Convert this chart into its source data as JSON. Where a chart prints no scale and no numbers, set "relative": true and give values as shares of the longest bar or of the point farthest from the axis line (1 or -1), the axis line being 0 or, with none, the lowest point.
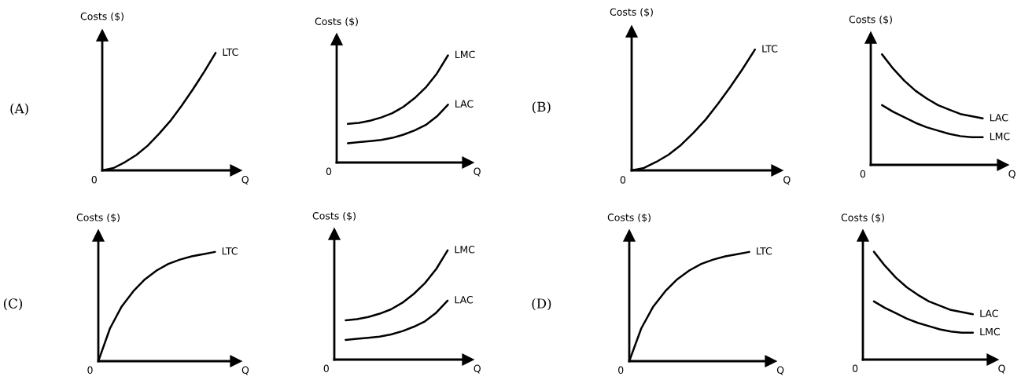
{
  "chart_data": [
    {
      "type": "line",
      "relative": true,
      "ylabel": "Costs ($)",
      "xlabel": "Q",
      "annotations": [
        "(A)",
        "0"
      ],
      "categories": [
        null,
        null,
        null,
        null,
        null,
        null,
        null,
        null,
        null,
        null,
        null
      ],
      "series": [
        {
          "name": "LTC",
          "color": "#000000",
          "values": [
            0,
            0.02,
            0.07,
            0.13,
            0.21,
            0.31,
            0.42,
            0.55,
            0.69,
            0.84,
            1
          ]
        }
      ]
    },
    {
      "type": "line",
      "relative": true,
      "ylabel": "Costs ($)",
      "xlabel": "Q",
      "annotations": [
        "0"
      ],
      "categories": [
        null,
        null,
        null,
        null,
        null,
        null,
        null,
        null,
        null,
        null,
        null
      ],
      "series": [
        {
          "name": "LMC",
          "color": "#000000",
          "values": [
            null,
            0.36,
            0.37,
            0.39,
            0.42,
            0.46,
            0.52,
            0.6,
            0.7,
            0.83,
            1
          ]
        },
        {
          "name": "LAC",
          "color": "#000000",
          "values": [
            null,
            0.18,
            0.19,
            0.2,
            0.21,
            0.23,
            0.26,
            0.3,
            0.35,
            0.43,
            0.54
          ]
        }
      ]
    },
    {
      "type": "line",
      "relative": true,
      "ylabel": "Costs ($)",
      "xlabel": "Q",
      "annotations": [
        "(B)",
        "0"
      ],
      "categories": [
        null,
        null,
        null,
        null,
        null,
        null,
        null,
        null,
        null,
        null,
        null
      ],
      "series": [
        {
          "name": "LTC",
          "color": "#000000",
          "values": [
            0,
            0.02,
            0.07,
            0.13,
            0.21,
            0.31,
            0.42,
            0.55,
            0.69,
            0.84,
            1
          ]
        }
      ]
    },
    {
      "type": "line",
      "relative": true,
      "ylabel": "Costs ($)",
      "xlabel": "Q",
      "annotations": [
        "0"
      ],
      "categories": [
        null,
        null,
        null,
        null,
        null,
        null,
        null,
        null,
        null,
        null,
        null
      ],
      "series": [
        {
          "name": "LAC",
          "color": "#000000",
          "values": [
            null,
            1,
            0.87,
            0.76,
            0.67,
            0.6,
            0.54,
            0.5,
            0.46,
            0.44,
            0.42
          ]
        },
        {
          "name": "LMC",
          "color": "#000000",
          "values": [
            null,
            0.54,
            0.48,
            0.43,
            0.38,
            0.34,
            0.31,
            0.28,
            0.26,
            0.25,
            0.25
          ]
        }
      ]
    },
    {
      "type": "line",
      "relative": true,
      "ylabel": "Costs ($)",
      "xlabel": "Q",
      "annotations": [
        "(C)",
        "0"
      ],
      "categories": [
        null,
        null,
        null,
        null,
        null,
        null,
        null,
        null,
        null,
        null,
        null
      ],
      "series": [
        {
          "name": "LTC",
          "color": "#000000",
          "values": [
            0,
            0.3,
            0.5,
            0.64,
            0.75,
            0.83,
            0.89,
            0.93,
            0.96,
            0.98,
            1
          ]
        }
      ]
    },
    {
      "type": "line",
      "relative": true,
      "ylabel": "Costs ($)",
      "xlabel": "Q",
      "annotations": [
        "0"
      ],
      "categories": [
        null,
        null,
        null,
        null,
        null,
        null,
        null,
        null,
        null,
        null,
        null
      ],
      "series": [
        {
          "name": "LMC",
          "color": "#000000",
          "values": [
            null,
            0.36,
            0.37,
            0.39,
            0.42,
            0.46,
            0.52,
            0.6,
            0.7,
            0.83,
            1
          ]
        },
        {
          "name": "LAC",
          "color": "#000000",
          "values": [
            null,
            0.18,
            0.19,
            0.2,
            0.21,
            0.23,
            0.26,
            0.3,
            0.35,
            0.43,
            0.54
          ]
        }
      ]
    },
    {
      "type": "line",
      "relative": true,
      "ylabel": "Costs ($)",
      "xlabel": "Q",
      "annotations": [
        "(D)",
        "0"
      ],
      "categories": [
        null,
        null,
        null,
        null,
        null,
        null,
        null,
        null,
        null,
        null,
        null
      ],
      "series": [
        {
          "name": "LTC",
          "color": "#000000",
          "values": [
            0,
            0.3,
            0.5,
            0.64,
            0.75,
            0.83,
            0.89,
            0.93,
            0.96,
            0.98,
            1
          ]
        }
      ]
    },
    {
      "type": "line",
      "relative": true,
      "ylabel": "Costs ($)",
      "xlabel": "Q",
      "annotations": [
        "0"
      ],
      "categories": [
        null,
        null,
        null,
        null,
        null,
        null,
        null,
        null,
        null,
        null,
        null
      ],
      "series": [
        {
          "name": "LAC",
          "color": "#000000",
          "values": [
            null,
            1,
            0.87,
            0.76,
            0.67,
            0.6,
            0.54,
            0.5,
            0.46,
            0.44,
            0.42
          ]
        },
        {
          "name": "LMC",
          "color": "#000000",
          "values": [
            null,
            0.54,
            0.48,
            0.43,
            0.38,
            0.34,
            0.31,
            0.28,
            0.26,
            0.25,
            0.25
          ]
        }
      ]
    }
  ]
}
